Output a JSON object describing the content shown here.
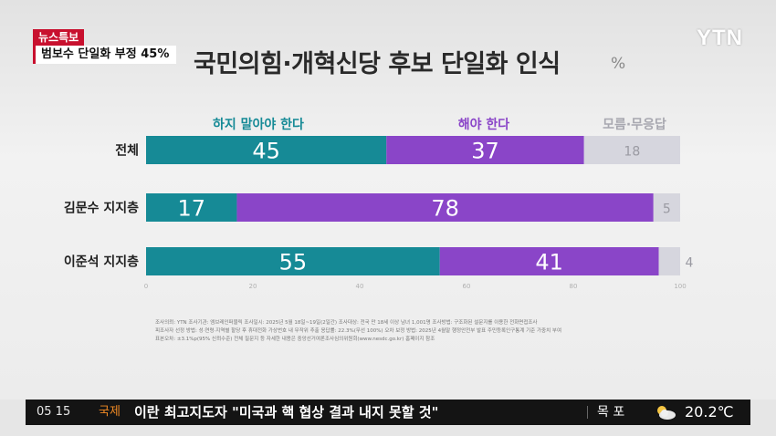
{
  "news": {
    "badge": "뉴스특보",
    "subtitle": "범보수 단일화 부정 45%"
  },
  "logo": "YTN",
  "title": "국민의힘·개혁신당 후보 단일화 인식",
  "unit": "%",
  "chart_data": {
    "type": "bar",
    "stacked": true,
    "orientation": "horizontal",
    "categories": [
      "전체",
      "김문수 지지층",
      "이준석 지지층"
    ],
    "series": [
      {
        "name": "하지 말아야 한다",
        "values": [
          45,
          17,
          55
        ],
        "color": "#168a96"
      },
      {
        "name": "해야 한다",
        "values": [
          37,
          78,
          41
        ],
        "color": "#8a45c8"
      },
      {
        "name": "모름·무응답",
        "values": [
          18,
          5,
          4
        ],
        "color": "#d6d6de"
      }
    ],
    "xlim": [
      0,
      100
    ],
    "xticks": [
      0,
      20,
      40,
      60,
      80,
      100
    ],
    "legend": "top"
  },
  "source_lines": [
    "조사의뢰: YTN   조사기관: 엠브레인퍼블릭   조사일시: 2025년 5월 18일~19일(2일간)   조사대상: 전국 만 18세 이상 남녀 1,001명   조사방법: 구조화된 설문지를 이용한 전화면접조사",
    "피조사자 선정 방법: 성·연령·지역별 할당 후 휴대전화 가상번호 내 무작위 추출   응답률: 22.3%(무선 100%)   오차 보정 방법: 2025년 4월말 행정안전부 발표 주민등록인구통계 기준 가중치 부여",
    "표본오차: ±3.1%p(95% 신뢰수준)   전체 질문지 등 자세한 내용은 중앙선거여론조사심의위원회(www.nesdc.go.kr) 홈페이지 참조"
  ],
  "ticker": {
    "time": "05 15",
    "category": "국제",
    "headline": "이란 최고지도자 \"미국과 핵 협상 결과 내지 못할 것\"",
    "city": "목 포",
    "weather_icon": "partly-cloudy-icon",
    "temperature": "20.2℃"
  }
}
